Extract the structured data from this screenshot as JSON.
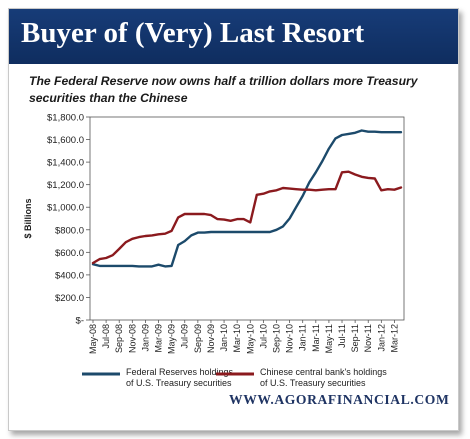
{
  "header": {
    "title": "Buyer of (Very) Last Resort",
    "subtitle": "The Federal Reserve now owns half a trillion dollars more Treasury securities than the Chinese"
  },
  "footer": {
    "url": "WWW.AGORAFINANCIAL.COM"
  },
  "chart_data": {
    "type": "line",
    "title": "",
    "xlabel": "",
    "ylabel": "$ Billions",
    "ylim": [
      0,
      1800
    ],
    "y_ticks": [
      0,
      200,
      400,
      600,
      800,
      1000,
      1200,
      1400,
      1600,
      1800
    ],
    "y_tick_labels": [
      "$-",
      "$200.0",
      "$400.0",
      "$600.0",
      "$800.0",
      "$1,000.0",
      "$1,200.0",
      "$1,400.0",
      "$1,600.0",
      "$1,800.0"
    ],
    "x_tick_labels": [
      "May-08",
      "Jul-08",
      "Sep-08",
      "Nov-08",
      "Jan-09",
      "Mar-09",
      "May-09",
      "Jul-09",
      "Sep-09",
      "Nov-09",
      "Jan-10",
      "Mar-10",
      "May-10",
      "Jul-10",
      "Sep-10",
      "Nov-10",
      "Jan-11",
      "Mar-11",
      "May-11",
      "Jul-11",
      "Sep-11",
      "Nov-11",
      "Jan-12",
      "Mar-12"
    ],
    "grid": false,
    "legend_position": "bottom",
    "x": [
      "May-08",
      "Jun-08",
      "Jul-08",
      "Aug-08",
      "Sep-08",
      "Oct-08",
      "Nov-08",
      "Dec-08",
      "Jan-09",
      "Feb-09",
      "Mar-09",
      "Apr-09",
      "May-09",
      "Jun-09",
      "Jul-09",
      "Aug-09",
      "Sep-09",
      "Oct-09",
      "Nov-09",
      "Dec-09",
      "Jan-10",
      "Feb-10",
      "Mar-10",
      "Apr-10",
      "May-10",
      "Jun-10",
      "Jul-10",
      "Aug-10",
      "Sep-10",
      "Oct-10",
      "Nov-10",
      "Dec-10",
      "Jan-11",
      "Feb-11",
      "Mar-11",
      "Apr-11",
      "May-11",
      "Jun-11",
      "Jul-11",
      "Aug-11",
      "Sep-11",
      "Oct-11",
      "Nov-11",
      "Dec-11",
      "Jan-12",
      "Feb-12",
      "Mar-12",
      "Apr-12"
    ],
    "series": [
      {
        "name": "Federal Reserves holdings of U.S. Treasury securities",
        "color": "#1c4a6b",
        "values": [
          495,
          480,
          480,
          480,
          480,
          480,
          480,
          475,
          475,
          475,
          490,
          475,
          480,
          665,
          700,
          750,
          775,
          775,
          780,
          780,
          780,
          780,
          780,
          780,
          780,
          780,
          780,
          780,
          800,
          830,
          900,
          1000,
          1100,
          1220,
          1310,
          1410,
          1520,
          1610,
          1640,
          1650,
          1660,
          1680,
          1670,
          1670,
          1665,
          1665,
          1665,
          1665
        ]
      },
      {
        "name": "Chinese central bank's holdings of U.S. Treasury securities",
        "color": "#8b1a1e",
        "values": [
          505,
          540,
          550,
          575,
          630,
          690,
          720,
          735,
          745,
          750,
          760,
          765,
          790,
          910,
          940,
          940,
          940,
          940,
          930,
          895,
          890,
          880,
          895,
          895,
          865,
          1110,
          1120,
          1140,
          1150,
          1170,
          1165,
          1160,
          1155,
          1155,
          1150,
          1155,
          1160,
          1160,
          1310,
          1315,
          1290,
          1270,
          1260,
          1255,
          1150,
          1160,
          1155,
          1175
        ]
      }
    ]
  }
}
